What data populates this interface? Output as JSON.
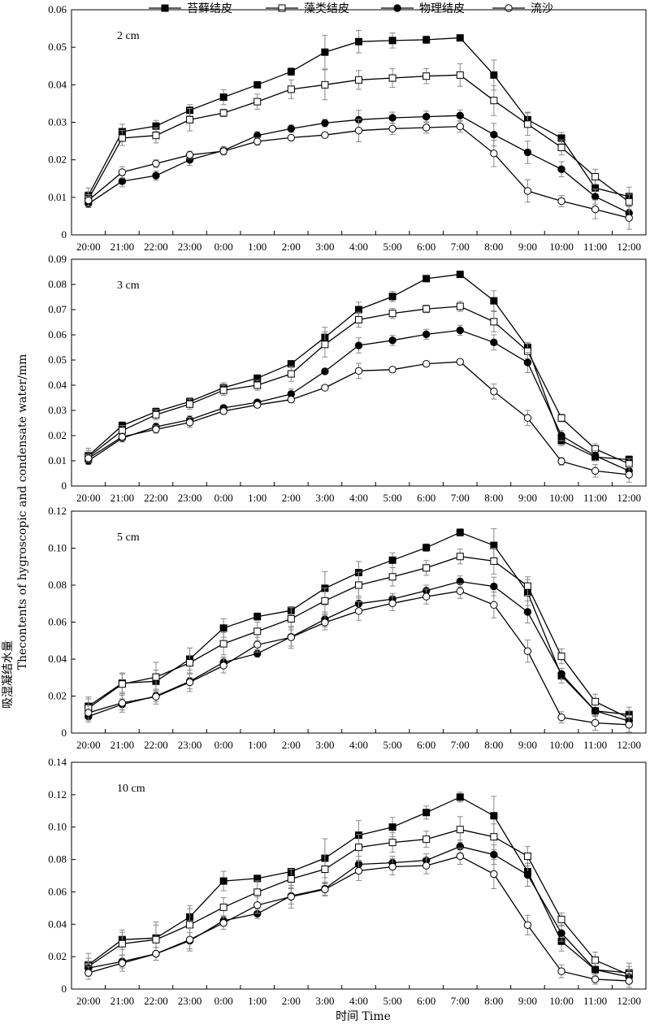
{
  "figure": {
    "ylabel": "Thecontents of hygroscopic and condensate water/mm",
    "ylabel_cn": "吸湿凝结水量",
    "xlabel": "时间 Time"
  },
  "legend": [
    {
      "name": "苔藓结皮",
      "marker": "filled-square"
    },
    {
      "name": "藻类结皮",
      "marker": "open-square"
    },
    {
      "name": "物理结皮",
      "marker": "filled-circle"
    },
    {
      "name": "流沙",
      "marker": "open-circle"
    }
  ],
  "chart_data": [
    {
      "type": "line",
      "title": "2 cm",
      "categories": [
        "20:00",
        "21:00",
        "22:00",
        "23:00",
        "0:00",
        "1:00",
        "2:00",
        "3:00",
        "4:00",
        "5:00",
        "6:00",
        "7:00",
        "8:00",
        "9:00",
        "10:00",
        "11:00",
        "12:00"
      ],
      "ylim": [
        0,
        0.06
      ],
      "yticks": [
        "0",
        "0.01",
        "0.02",
        "0.03",
        "0.04",
        "0.05",
        "0.06"
      ],
      "series": [
        {
          "name": "苔藓结皮",
          "values": [
            0.0105,
            0.0275,
            0.029,
            0.0332,
            0.0367,
            0.04,
            0.0435,
            0.0487,
            0.0515,
            0.0518,
            0.052,
            0.0525,
            0.0426,
            0.0307,
            0.0258,
            0.0125,
            0.0102
          ],
          "errors": [
            0.002,
            0.002,
            0.0015,
            0.0015,
            0.002,
            0.0005,
            0.001,
            0.0045,
            0.003,
            0.002,
            0.001,
            0.0008,
            0.004,
            0.002,
            0.0015,
            0.0025,
            0.0025
          ]
        },
        {
          "name": "藻类结皮",
          "values": [
            0.0095,
            0.0258,
            0.0265,
            0.0307,
            0.0325,
            0.0355,
            0.0388,
            0.04,
            0.0413,
            0.0418,
            0.0423,
            0.0426,
            0.0358,
            0.0295,
            0.0233,
            0.0155,
            0.0088
          ],
          "errors": [
            0.002,
            0.002,
            0.002,
            0.003,
            0.001,
            0.002,
            0.0025,
            0.004,
            0.0025,
            0.0025,
            0.002,
            0.003,
            0.004,
            0.003,
            0.002,
            0.002,
            0.002
          ]
        },
        {
          "name": "物理结皮",
          "values": [
            0.0083,
            0.0143,
            0.0158,
            0.02,
            0.0225,
            0.0265,
            0.0283,
            0.0298,
            0.0307,
            0.0312,
            0.0315,
            0.0318,
            0.0267,
            0.022,
            0.0175,
            0.0102,
            0.0058
          ],
          "errors": [
            0.001,
            0.0015,
            0.0012,
            0.0015,
            0.001,
            0.001,
            0.001,
            0.001,
            0.0025,
            0.0015,
            0.0015,
            0.0015,
            0.003,
            0.003,
            0.002,
            0.002,
            0.002
          ]
        },
        {
          "name": "流沙",
          "values": [
            0.0092,
            0.0167,
            0.019,
            0.0213,
            0.0223,
            0.0249,
            0.0259,
            0.0266,
            0.0278,
            0.0283,
            0.0286,
            0.0289,
            0.0217,
            0.0117,
            0.009,
            0.0068,
            0.0045
          ],
          "errors": [
            0.0015,
            0.0015,
            0.001,
            0.001,
            0.001,
            0.001,
            0.0005,
            0.0005,
            0.003,
            0.0015,
            0.0015,
            0.0015,
            0.0035,
            0.003,
            0.0015,
            0.0025,
            0.003
          ]
        }
      ]
    },
    {
      "type": "line",
      "title": "3 cm",
      "categories": [
        "20:00",
        "21:00",
        "22:00",
        "23:00",
        "0:00",
        "1:00",
        "2:00",
        "3:00",
        "4:00",
        "5:00",
        "6:00",
        "7:00",
        "8:00",
        "9:00",
        "10:00",
        "11:00",
        "12:00"
      ],
      "ylim": [
        0,
        0.09
      ],
      "yticks": [
        "0",
        "0.01",
        "0.02",
        "0.03",
        "0.04",
        "0.05",
        "0.06",
        "0.07",
        "0.08",
        "0.09"
      ],
      "series": [
        {
          "name": "苔藓结皮",
          "values": [
            0.012,
            0.024,
            0.0295,
            0.0335,
            0.039,
            0.0428,
            0.0485,
            0.059,
            0.07,
            0.0752,
            0.0823,
            0.084,
            0.0735,
            0.055,
            0.018,
            0.0115,
            0.0105
          ],
          "errors": [
            0.003,
            0.0015,
            0.0015,
            0.0015,
            0.002,
            0.001,
            0.001,
            0.004,
            0.003,
            0.002,
            0.001,
            0.0005,
            0.004,
            0.002,
            0.002,
            0.001,
            0.0015
          ]
        },
        {
          "name": "藻类结皮",
          "values": [
            0.0115,
            0.022,
            0.0283,
            0.0325,
            0.038,
            0.04,
            0.0445,
            0.0562,
            0.066,
            0.0685,
            0.0703,
            0.0713,
            0.0652,
            0.0535,
            0.027,
            0.0147,
            0.0088
          ],
          "errors": [
            0.0025,
            0.002,
            0.002,
            0.002,
            0.002,
            0.002,
            0.003,
            0.005,
            0.003,
            0.002,
            0.0015,
            0.002,
            0.004,
            0.003,
            0.0015,
            0.002,
            0.002
          ]
        },
        {
          "name": "物理结皮",
          "values": [
            0.01,
            0.019,
            0.0235,
            0.0263,
            0.031,
            0.0332,
            0.0365,
            0.0455,
            0.0558,
            0.0578,
            0.0602,
            0.0618,
            0.057,
            0.049,
            0.02,
            0.012,
            0.006
          ],
          "errors": [
            0.0015,
            0.0015,
            0.0015,
            0.0015,
            0.001,
            0.001,
            0.002,
            0.001,
            0.003,
            0.002,
            0.002,
            0.002,
            0.003,
            0.004,
            0.002,
            0.002,
            0.002
          ]
        },
        {
          "name": "流沙",
          "values": [
            0.011,
            0.0195,
            0.0225,
            0.0252,
            0.0297,
            0.0322,
            0.0343,
            0.039,
            0.0457,
            0.0462,
            0.0485,
            0.0493,
            0.0375,
            0.027,
            0.0098,
            0.006,
            0.0045
          ],
          "errors": [
            0.0015,
            0.0015,
            0.0015,
            0.002,
            0.001,
            0.001,
            0.001,
            0.0005,
            0.003,
            0.001,
            0.001,
            0.001,
            0.003,
            0.003,
            0.0015,
            0.0025,
            0.003
          ]
        }
      ]
    },
    {
      "type": "line",
      "title": "5 cm",
      "categories": [
        "20:00",
        "21:00",
        "22:00",
        "23:00",
        "0:00",
        "1:00",
        "2:00",
        "3:00",
        "4:00",
        "5:00",
        "6:00",
        "7:00",
        "8:00",
        "9:00",
        "10:00",
        "11:00",
        "12:00"
      ],
      "ylim": [
        0,
        0.12
      ],
      "yticks": [
        "0",
        "0.02",
        "0.04",
        "0.06",
        "0.08",
        "0.10",
        "0.12"
      ],
      "series": [
        {
          "name": "苔藓结皮",
          "values": [
            0.0145,
            0.027,
            0.028,
            0.04,
            0.0568,
            0.063,
            0.0663,
            0.0783,
            0.0868,
            0.0935,
            0.1003,
            0.1085,
            0.1015,
            0.076,
            0.031,
            0.012,
            0.01
          ],
          "errors": [
            0.005,
            0.005,
            0.006,
            0.006,
            0.005,
            0.002,
            0.002,
            0.009,
            0.006,
            0.004,
            0.002,
            0.002,
            0.009,
            0.007,
            0.004,
            0.005,
            0.004
          ]
        },
        {
          "name": "藻类结皮",
          "values": [
            0.0135,
            0.0265,
            0.0303,
            0.038,
            0.0483,
            0.055,
            0.0618,
            0.0715,
            0.08,
            0.0845,
            0.0893,
            0.0955,
            0.093,
            0.0795,
            0.0415,
            0.017,
            0.008
          ],
          "errors": [
            0.005,
            0.006,
            0.008,
            0.008,
            0.006,
            0.005,
            0.006,
            0.007,
            0.007,
            0.005,
            0.004,
            0.004,
            0.007,
            0.005,
            0.004,
            0.004,
            0.004
          ]
        },
        {
          "name": "物理结皮",
          "values": [
            0.009,
            0.0155,
            0.02,
            0.028,
            0.0382,
            0.043,
            0.052,
            0.0615,
            0.07,
            0.0725,
            0.077,
            0.082,
            0.0793,
            0.0655,
            0.032,
            0.012,
            0.0065
          ],
          "errors": [
            0.003,
            0.003,
            0.003,
            0.004,
            0.003,
            0.002,
            0.005,
            0.004,
            0.004,
            0.003,
            0.003,
            0.003,
            0.005,
            0.006,
            0.003,
            0.003,
            0.003
          ]
        },
        {
          "name": "流沙",
          "values": [
            0.011,
            0.0163,
            0.0197,
            0.0275,
            0.0365,
            0.0478,
            0.0518,
            0.0598,
            0.066,
            0.0702,
            0.0738,
            0.0768,
            0.0693,
            0.0443,
            0.0085,
            0.0055,
            0.0045
          ],
          "errors": [
            0.004,
            0.005,
            0.004,
            0.005,
            0.004,
            0.004,
            0.006,
            0.004,
            0.005,
            0.004,
            0.004,
            0.004,
            0.007,
            0.006,
            0.003,
            0.004,
            0.004
          ]
        }
      ]
    },
    {
      "type": "line",
      "title": "10 cm",
      "categories": [
        "20:00",
        "21:00",
        "22:00",
        "23:00",
        "0:00",
        "1:00",
        "2:00",
        "3:00",
        "4:00",
        "5:00",
        "6:00",
        "7:00",
        "8:00",
        "9:00",
        "10:00",
        "11:00",
        "12:00"
      ],
      "ylim": [
        0,
        0.14
      ],
      "yticks": [
        "0",
        "0.02",
        "0.04",
        "0.06",
        "0.08",
        "0.10",
        "0.12",
        "0.14"
      ],
      "series": [
        {
          "name": "苔藓结皮",
          "values": [
            0.015,
            0.0305,
            0.0315,
            0.0445,
            0.0667,
            0.0683,
            0.0725,
            0.0808,
            0.095,
            0.1,
            0.109,
            0.1185,
            0.107,
            0.0725,
            0.0295,
            0.012,
            0.01
          ],
          "errors": [
            0.007,
            0.006,
            0.01,
            0.007,
            0.006,
            0.002,
            0.002,
            0.012,
            0.009,
            0.006,
            0.004,
            0.003,
            0.012,
            0.009,
            0.006,
            0.006,
            0.006
          ]
        },
        {
          "name": "藻类结皮",
          "values": [
            0.014,
            0.028,
            0.0305,
            0.0397,
            0.0505,
            0.0598,
            0.068,
            0.074,
            0.0875,
            0.0905,
            0.0925,
            0.0985,
            0.094,
            0.082,
            0.043,
            0.0178,
            0.0088
          ],
          "errors": [
            0.005,
            0.007,
            0.009,
            0.01,
            0.006,
            0.007,
            0.006,
            0.009,
            0.008,
            0.006,
            0.005,
            0.008,
            0.008,
            0.006,
            0.004,
            0.005,
            0.005
          ]
        },
        {
          "name": "物理结皮",
          "values": [
            0.013,
            0.017,
            0.0218,
            0.0298,
            0.0422,
            0.0465,
            0.0575,
            0.062,
            0.077,
            0.078,
            0.0795,
            0.088,
            0.083,
            0.0705,
            0.0345,
            0.012,
            0.0075
          ],
          "errors": [
            0.004,
            0.004,
            0.004,
            0.005,
            0.003,
            0.003,
            0.005,
            0.004,
            0.005,
            0.004,
            0.004,
            0.004,
            0.006,
            0.007,
            0.005,
            0.004,
            0.004
          ]
        },
        {
          "name": "流沙",
          "values": [
            0.01,
            0.016,
            0.0218,
            0.0305,
            0.0408,
            0.0518,
            0.057,
            0.0615,
            0.073,
            0.0755,
            0.0762,
            0.082,
            0.071,
            0.0395,
            0.011,
            0.006,
            0.005
          ],
          "errors": [
            0.004,
            0.005,
            0.004,
            0.007,
            0.004,
            0.005,
            0.007,
            0.004,
            0.006,
            0.005,
            0.005,
            0.005,
            0.009,
            0.006,
            0.004,
            0.003,
            0.004
          ]
        }
      ]
    }
  ]
}
